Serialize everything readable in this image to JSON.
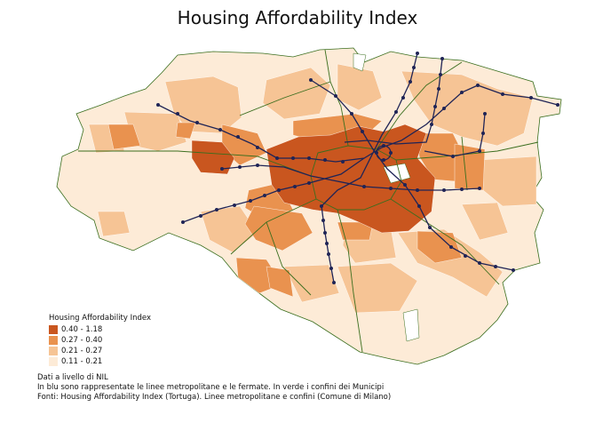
{
  "title": "Housing Affordability Index",
  "legend": {
    "title": "Housing Affordability Index",
    "classes": [
      {
        "label": "0.40 - 1.18",
        "color": "#c9561f"
      },
      {
        "label": "0.27 - 0.40",
        "color": "#e9924f"
      },
      {
        "label": "0.21 - 0.27",
        "color": "#f6c495"
      },
      {
        "label": "0.11 - 0.21",
        "color": "#fdebd7"
      }
    ]
  },
  "notes": [
    "Dati a livello di NIL",
    "In blu sono rappresentate le linee metropolitane e le fermate. In verde i confini dei Municipi",
    "Fonti: Housing Affordability Index (Tortuga). Linee metropolitane e confini (Comune di Milano)"
  ],
  "colors": {
    "metro_line": "#1f2456",
    "municipi_border": "#3a6e1e",
    "no_data": "#ffffff"
  }
}
